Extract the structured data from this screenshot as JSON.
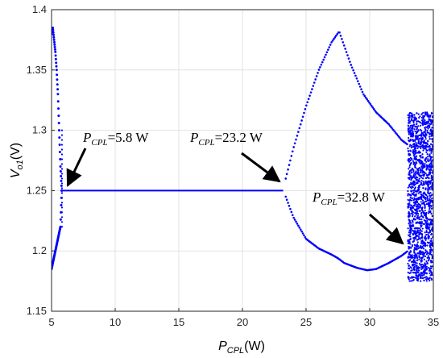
{
  "chart_data": {
    "type": "scatter",
    "xlabel": {
      "main": "P",
      "sub": "CPL",
      "unit": "(W)"
    },
    "ylabel": {
      "main": "V",
      "sub": "o1",
      "unit": "(V)"
    },
    "xlim": [
      5,
      35
    ],
    "ylim": [
      1.15,
      1.4
    ],
    "xticks": [
      5,
      10,
      15,
      20,
      25,
      30,
      35
    ],
    "yticks": [
      1.15,
      1.2,
      1.25,
      1.3,
      1.35,
      1.4
    ],
    "grid": true,
    "series_color": "#0000ff",
    "segments": {
      "pre_bifurcation_band": {
        "x_range": [
          5.0,
          5.8
        ],
        "upper": [
          1.38,
          1.385,
          1.375,
          1.365,
          1.35,
          1.33,
          1.3,
          1.27,
          1.25
        ],
        "lower": [
          1.185,
          1.19,
          1.195,
          1.2,
          1.205,
          1.21,
          1.215,
          1.22,
          1.25
        ]
      },
      "stable_equilibrium": {
        "x_range": [
          5.8,
          23.2
        ],
        "value": 1.25
      },
      "upper_branch": [
        [
          23.4,
          1.26
        ],
        [
          24.0,
          1.285
        ],
        [
          25.0,
          1.32
        ],
        [
          26.0,
          1.35
        ],
        [
          27.0,
          1.373
        ],
        [
          27.6,
          1.382
        ],
        [
          28.5,
          1.355
        ],
        [
          29.5,
          1.33
        ],
        [
          30.5,
          1.315
        ],
        [
          31.5,
          1.305
        ],
        [
          32.5,
          1.292
        ],
        [
          33.0,
          1.288
        ]
      ],
      "lower_branch": [
        [
          23.4,
          1.245
        ],
        [
          24.0,
          1.228
        ],
        [
          25.0,
          1.21
        ],
        [
          26.0,
          1.202
        ],
        [
          27.0,
          1.197
        ],
        [
          27.5,
          1.194
        ],
        [
          28.0,
          1.19
        ],
        [
          29.0,
          1.186
        ],
        [
          29.8,
          1.184
        ],
        [
          30.5,
          1.185
        ],
        [
          31.5,
          1.19
        ],
        [
          32.5,
          1.196
        ],
        [
          33.0,
          1.2
        ]
      ],
      "chaotic_region": {
        "x_range": [
          33.0,
          35.0
        ],
        "y_range": [
          1.175,
          1.315
        ]
      }
    },
    "annotations": [
      {
        "prefix": "P",
        "sub": "CPL",
        "value": "=5.8 W",
        "x": 5.8,
        "y": 1.25
      },
      {
        "prefix": "P",
        "sub": "CPL",
        "value": "=23.2 W",
        "x": 23.2,
        "y": 1.25
      },
      {
        "prefix": "P",
        "sub": "CPL",
        "value": "=32.8 W",
        "x": 32.8,
        "y": 1.2
      }
    ]
  }
}
